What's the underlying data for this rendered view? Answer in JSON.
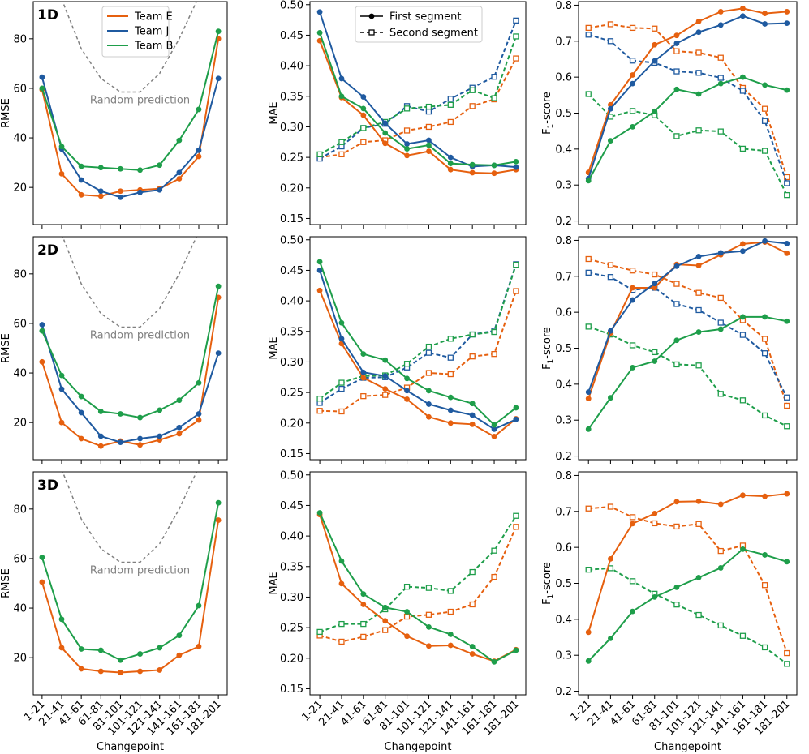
{
  "figure": {
    "x_axis_label": "Changepoint",
    "categories": [
      "1-21",
      "21-41",
      "41-61",
      "61-81",
      "81-101",
      "101-121",
      "121-141",
      "141-161",
      "161-181",
      "181-201"
    ],
    "colors": {
      "Team E": "#e6600f",
      "Team J": "#1f5aa0",
      "Team B": "#1e9e4a",
      "random": "#808080"
    },
    "team_legend": [
      "Team E",
      "Team J",
      "Team B"
    ],
    "segment_legend": [
      "First segment",
      "Second segment"
    ],
    "random_label": "Random prediction",
    "row_labels": [
      "1D",
      "2D",
      "3D"
    ]
  },
  "chart_data": [
    {
      "type": "line",
      "row": "1D",
      "metric": "RMSE",
      "ylabel": "RMSE",
      "ylim": [
        5,
        95
      ],
      "yticks": [
        20,
        40,
        60,
        80
      ],
      "random_prediction": [
        115,
        96,
        76,
        64,
        58.5,
        58.5,
        66,
        80,
        97,
        117
      ],
      "series": [
        {
          "name": "Team E",
          "values": [
            59.5,
            25.5,
            17,
            16.5,
            18.5,
            19,
            19.5,
            23.5,
            32.5,
            80
          ]
        },
        {
          "name": "Team J",
          "values": [
            64.5,
            35.5,
            23,
            18.5,
            16,
            18,
            19,
            26,
            35,
            64
          ]
        },
        {
          "name": "Team B",
          "values": [
            60,
            36.5,
            28.5,
            28,
            27.5,
            27,
            29,
            39,
            51.5,
            83
          ]
        }
      ]
    },
    {
      "type": "line",
      "row": "1D",
      "metric": "MAE",
      "ylabel": "MAE",
      "ylim": [
        0.14,
        0.505
      ],
      "yticks": [
        0.15,
        0.2,
        0.25,
        0.3,
        0.35,
        0.4,
        0.45,
        0.5
      ],
      "series": [
        {
          "name": "Team E",
          "segment": "First segment",
          "values": [
            0.441,
            0.348,
            0.319,
            0.273,
            0.253,
            0.26,
            0.23,
            0.225,
            0.224,
            0.23
          ]
        },
        {
          "name": "Team J",
          "segment": "First segment",
          "values": [
            0.488,
            0.379,
            0.349,
            0.306,
            0.272,
            0.278,
            0.25,
            0.235,
            0.237,
            0.234
          ]
        },
        {
          "name": "Team B",
          "segment": "First segment",
          "values": [
            0.454,
            0.35,
            0.33,
            0.29,
            0.264,
            0.27,
            0.24,
            0.238,
            0.237,
            0.243
          ]
        },
        {
          "name": "Team E",
          "segment": "Second segment",
          "values": [
            0.25,
            0.255,
            0.275,
            0.278,
            0.294,
            0.3,
            0.308,
            0.334,
            0.345,
            0.412
          ]
        },
        {
          "name": "Team J",
          "segment": "Second segment",
          "values": [
            0.248,
            0.268,
            0.298,
            0.305,
            0.334,
            0.325,
            0.346,
            0.364,
            0.382,
            0.474
          ]
        },
        {
          "name": "Team B",
          "segment": "Second segment",
          "values": [
            0.255,
            0.275,
            0.298,
            0.308,
            0.33,
            0.333,
            0.336,
            0.36,
            0.347,
            0.448
          ]
        }
      ]
    },
    {
      "type": "line",
      "row": "1D",
      "metric": "F1-score",
      "ylabel": "F1-score",
      "ylim": [
        0.19,
        0.81
      ],
      "yticks": [
        0.2,
        0.3,
        0.4,
        0.5,
        0.6,
        0.7,
        0.8
      ],
      "series": [
        {
          "name": "Team E",
          "segment": "First segment",
          "values": [
            0.335,
            0.523,
            0.606,
            0.69,
            0.716,
            0.755,
            0.782,
            0.791,
            0.777,
            0.782
          ]
        },
        {
          "name": "Team J",
          "segment": "First segment",
          "values": [
            0.318,
            0.512,
            0.582,
            0.645,
            0.694,
            0.725,
            0.745,
            0.77,
            0.748,
            0.75
          ]
        },
        {
          "name": "Team B",
          "segment": "First segment",
          "values": [
            0.312,
            0.423,
            0.462,
            0.505,
            0.566,
            0.553,
            0.582,
            0.6,
            0.578,
            0.564
          ]
        },
        {
          "name": "Team E",
          "segment": "Second segment",
          "values": [
            0.737,
            0.747,
            0.737,
            0.735,
            0.672,
            0.668,
            0.654,
            0.57,
            0.512,
            0.322
          ]
        },
        {
          "name": "Team J",
          "segment": "Second segment",
          "values": [
            0.718,
            0.7,
            0.646,
            0.64,
            0.616,
            0.612,
            0.598,
            0.562,
            0.478,
            0.305
          ]
        },
        {
          "name": "Team B",
          "segment": "Second segment",
          "values": [
            0.553,
            0.49,
            0.506,
            0.494,
            0.436,
            0.452,
            0.449,
            0.401,
            0.395,
            0.272
          ]
        }
      ]
    },
    {
      "type": "line",
      "row": "2D",
      "metric": "RMSE",
      "ylabel": "RMSE",
      "ylim": [
        5,
        95
      ],
      "yticks": [
        20,
        40,
        60,
        80
      ],
      "random_prediction": [
        115,
        96,
        76,
        64,
        58.5,
        58.5,
        66,
        80,
        97,
        117
      ],
      "series": [
        {
          "name": "Team E",
          "values": [
            44.5,
            20,
            13.5,
            10.5,
            12.5,
            11,
            13,
            15.5,
            21,
            70.5
          ]
        },
        {
          "name": "Team J",
          "values": [
            59.5,
            33.5,
            24,
            14.5,
            12,
            13.5,
            14.5,
            18,
            23.5,
            48
          ]
        },
        {
          "name": "Team B",
          "values": [
            57,
            39,
            30.5,
            24.5,
            23.5,
            22,
            25,
            29,
            36,
            75
          ]
        }
      ]
    },
    {
      "type": "line",
      "row": "2D",
      "metric": "MAE",
      "ylabel": "MAE",
      "ylim": [
        0.14,
        0.505
      ],
      "yticks": [
        0.15,
        0.2,
        0.25,
        0.3,
        0.35,
        0.4,
        0.45,
        0.5
      ],
      "series": [
        {
          "name": "Team E",
          "segment": "First segment",
          "values": [
            0.417,
            0.33,
            0.274,
            0.256,
            0.239,
            0.21,
            0.2,
            0.198,
            0.178,
            0.207
          ]
        },
        {
          "name": "Team J",
          "segment": "First segment",
          "values": [
            0.45,
            0.338,
            0.283,
            0.277,
            0.253,
            0.231,
            0.221,
            0.213,
            0.19,
            0.206
          ]
        },
        {
          "name": "Team B",
          "segment": "First segment",
          "values": [
            0.464,
            0.364,
            0.313,
            0.303,
            0.273,
            0.253,
            0.242,
            0.232,
            0.197,
            0.225
          ]
        },
        {
          "name": "Team E",
          "segment": "Second segment",
          "values": [
            0.22,
            0.219,
            0.244,
            0.246,
            0.258,
            0.282,
            0.28,
            0.309,
            0.313,
            0.416
          ]
        },
        {
          "name": "Team J",
          "segment": "Second segment",
          "values": [
            0.233,
            0.256,
            0.274,
            0.275,
            0.291,
            0.315,
            0.307,
            0.345,
            0.351,
            0.46
          ]
        },
        {
          "name": "Team B",
          "segment": "Second segment",
          "values": [
            0.24,
            0.266,
            0.277,
            0.278,
            0.297,
            0.325,
            0.338,
            0.345,
            0.349,
            0.459
          ]
        }
      ]
    },
    {
      "type": "line",
      "row": "2D",
      "metric": "F1-score",
      "ylabel": "F1-score",
      "ylim": [
        0.19,
        0.81
      ],
      "yticks": [
        0.2,
        0.3,
        0.4,
        0.5,
        0.6,
        0.7,
        0.8
      ],
      "series": [
        {
          "name": "Team E",
          "segment": "First segment",
          "values": [
            0.36,
            0.542,
            0.668,
            0.668,
            0.733,
            0.73,
            0.76,
            0.79,
            0.795,
            0.764
          ]
        },
        {
          "name": "Team J",
          "segment": "First segment",
          "values": [
            0.378,
            0.548,
            0.634,
            0.68,
            0.728,
            0.755,
            0.765,
            0.77,
            0.798,
            0.791
          ]
        },
        {
          "name": "Team B",
          "segment": "First segment",
          "values": [
            0.275,
            0.362,
            0.446,
            0.464,
            0.522,
            0.545,
            0.553,
            0.587,
            0.587,
            0.575
          ]
        },
        {
          "name": "Team E",
          "segment": "Second segment",
          "values": [
            0.748,
            0.731,
            0.716,
            0.705,
            0.679,
            0.654,
            0.64,
            0.578,
            0.526,
            0.34
          ]
        },
        {
          "name": "Team J",
          "segment": "Second segment",
          "values": [
            0.71,
            0.698,
            0.662,
            0.668,
            0.623,
            0.606,
            0.571,
            0.537,
            0.486,
            0.363
          ]
        },
        {
          "name": "Team B",
          "segment": "Second segment",
          "values": [
            0.56,
            0.538,
            0.508,
            0.489,
            0.455,
            0.452,
            0.373,
            0.355,
            0.313,
            0.283
          ]
        }
      ]
    },
    {
      "type": "line",
      "row": "3D",
      "metric": "RMSE",
      "ylabel": "RMSE",
      "ylim": [
        5,
        95
      ],
      "yticks": [
        20,
        40,
        60,
        80
      ],
      "random_prediction": [
        115,
        96,
        76,
        64,
        58.5,
        58.5,
        66,
        80,
        97,
        117
      ],
      "series": [
        {
          "name": "Team E",
          "values": [
            50.5,
            24,
            15.5,
            14.5,
            14,
            14.5,
            15,
            21,
            24.5,
            75.5
          ]
        },
        {
          "name": "Team B",
          "values": [
            60.5,
            35.5,
            23.5,
            23,
            19,
            21.5,
            24,
            29,
            41,
            82.5
          ]
        }
      ]
    },
    {
      "type": "line",
      "row": "3D",
      "metric": "MAE",
      "ylabel": "MAE",
      "ylim": [
        0.14,
        0.505
      ],
      "yticks": [
        0.15,
        0.2,
        0.25,
        0.3,
        0.35,
        0.4,
        0.45,
        0.5
      ],
      "series": [
        {
          "name": "Team E",
          "segment": "First segment",
          "values": [
            0.435,
            0.322,
            0.288,
            0.261,
            0.236,
            0.22,
            0.221,
            0.207,
            0.195,
            0.214
          ]
        },
        {
          "name": "Team B",
          "segment": "First segment",
          "values": [
            0.438,
            0.359,
            0.305,
            0.283,
            0.276,
            0.251,
            0.239,
            0.219,
            0.194,
            0.213
          ]
        },
        {
          "name": "Team E",
          "segment": "Second segment",
          "values": [
            0.237,
            0.227,
            0.235,
            0.246,
            0.268,
            0.271,
            0.276,
            0.288,
            0.333,
            0.415
          ]
        },
        {
          "name": "Team B",
          "segment": "Second segment",
          "values": [
            0.243,
            0.256,
            0.256,
            0.28,
            0.317,
            0.315,
            0.31,
            0.341,
            0.376,
            0.433
          ]
        }
      ]
    },
    {
      "type": "line",
      "row": "3D",
      "metric": "F1-score",
      "ylabel": "F1-score",
      "ylim": [
        0.19,
        0.81
      ],
      "yticks": [
        0.2,
        0.3,
        0.4,
        0.5,
        0.6,
        0.7,
        0.8
      ],
      "series": [
        {
          "name": "Team E",
          "segment": "First segment",
          "values": [
            0.364,
            0.568,
            0.666,
            0.694,
            0.727,
            0.728,
            0.72,
            0.745,
            0.742,
            0.749
          ]
        },
        {
          "name": "Team B",
          "segment": "First segment",
          "values": [
            0.284,
            0.347,
            0.422,
            0.462,
            0.489,
            0.516,
            0.543,
            0.595,
            0.579,
            0.56
          ]
        },
        {
          "name": "Team E",
          "segment": "Second segment",
          "values": [
            0.708,
            0.713,
            0.684,
            0.667,
            0.658,
            0.665,
            0.59,
            0.605,
            0.495,
            0.306
          ]
        },
        {
          "name": "Team B",
          "segment": "Second segment",
          "values": [
            0.538,
            0.542,
            0.506,
            0.471,
            0.441,
            0.412,
            0.383,
            0.354,
            0.322,
            0.276
          ]
        }
      ]
    }
  ]
}
